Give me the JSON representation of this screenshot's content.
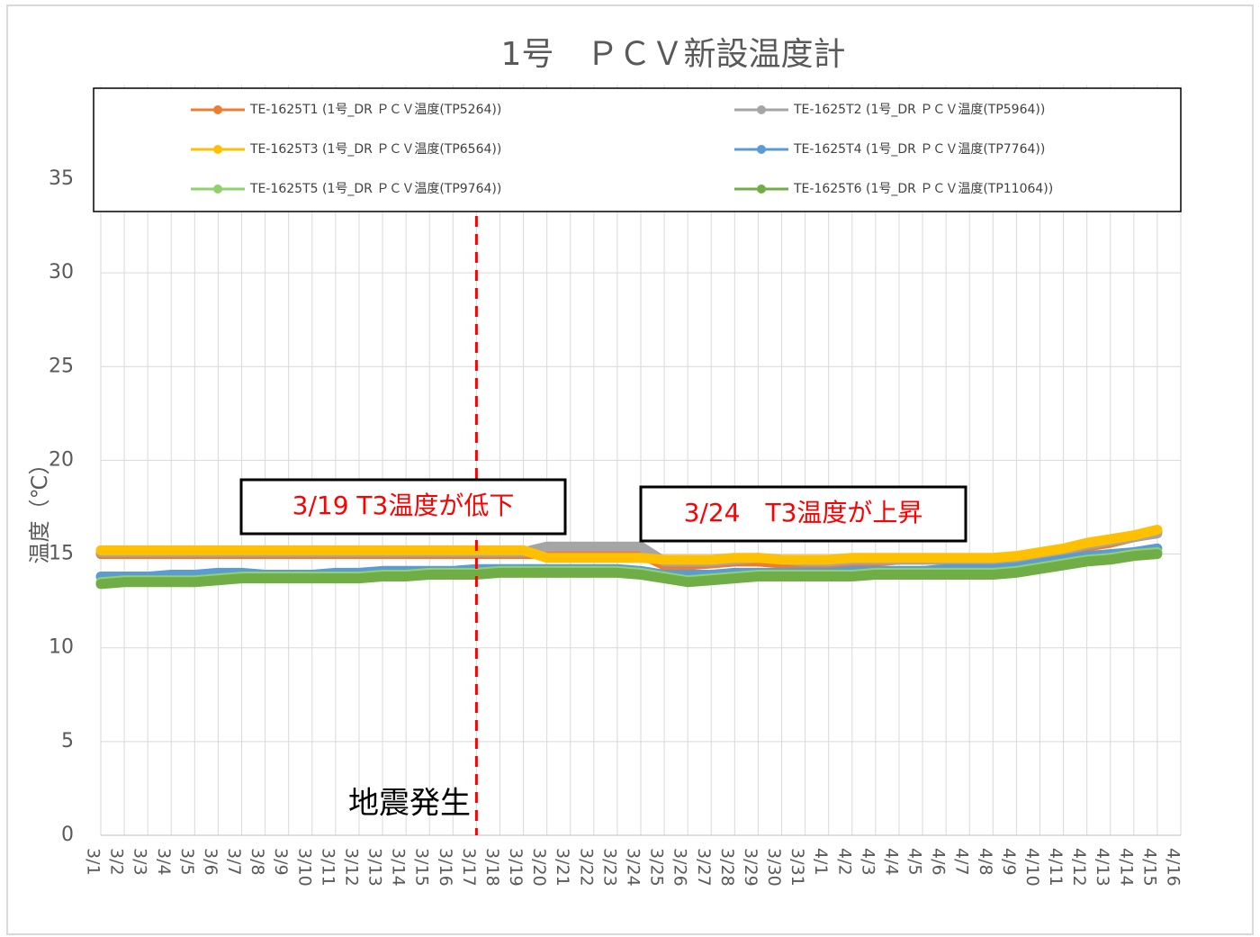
{
  "chart_data": {
    "type": "line",
    "title": "1号　ＰＣＶ新設温度計",
    "y_label": "温度（℃）",
    "categories": [
      "3/1",
      "3/2",
      "3/3",
      "3/4",
      "3/5",
      "3/6",
      "3/7",
      "3/8",
      "3/9",
      "3/10",
      "3/11",
      "3/12",
      "3/13",
      "3/14",
      "3/15",
      "3/16",
      "3/17",
      "3/18",
      "3/19",
      "3/20",
      "3/21",
      "3/22",
      "3/23",
      "3/24",
      "3/25",
      "3/26",
      "3/27",
      "3/28",
      "3/29",
      "3/30",
      "3/31",
      "4/1",
      "4/2",
      "4/3",
      "4/4",
      "4/5",
      "4/6",
      "4/7",
      "4/8",
      "4/9",
      "4/10",
      "4/11",
      "4/12",
      "4/13",
      "4/14",
      "4/15",
      "4/16"
    ],
    "series": [
      {
        "name": "TE-1625T1  (1号_DR ＰＣＶ温度(TP5264))",
        "color": "#ed7d31",
        "values": [
          15.0,
          15.0,
          15.0,
          15.0,
          15.0,
          15.0,
          15.0,
          15.0,
          15.0,
          15.0,
          15.0,
          15.0,
          15.0,
          15.0,
          15.0,
          15.0,
          15.0,
          15.0,
          15.0,
          15.0,
          15.0,
          15.0,
          15.0,
          15.0,
          14.4,
          14.4,
          14.5,
          14.6,
          14.6,
          14.5,
          14.5,
          14.5,
          14.6,
          14.6,
          14.7,
          14.7,
          14.7,
          14.7,
          14.7,
          14.8,
          15.0,
          15.2,
          15.4,
          15.6,
          15.9,
          16.2,
          null
        ]
      },
      {
        "name": "TE-1625T2  (1号_DR ＰＣＶ温度(TP5964))",
        "color": "#a5a5a5",
        "values": [
          15.1,
          15.1,
          15.1,
          15.1,
          15.1,
          15.1,
          15.1,
          15.1,
          15.1,
          15.1,
          15.1,
          15.1,
          15.1,
          15.1,
          15.1,
          15.1,
          15.1,
          15.1,
          15.1,
          15.4,
          15.4,
          15.4,
          15.4,
          15.4,
          14.6,
          14.6,
          14.6,
          14.7,
          14.8,
          14.7,
          14.6,
          14.6,
          14.7,
          14.7,
          14.7,
          14.7,
          14.7,
          14.7,
          14.7,
          14.8,
          15.0,
          15.2,
          15.5,
          15.7,
          15.9,
          16.1,
          null
        ]
      },
      {
        "name": "TE-1625T3  (1号_DR ＰＣＶ温度(TP6564))",
        "color": "#ffc000",
        "values": [
          15.2,
          15.2,
          15.2,
          15.2,
          15.2,
          15.2,
          15.2,
          15.2,
          15.2,
          15.2,
          15.2,
          15.2,
          15.2,
          15.2,
          15.2,
          15.2,
          15.2,
          15.2,
          15.2,
          14.8,
          14.8,
          14.8,
          14.8,
          14.8,
          14.7,
          14.7,
          14.7,
          14.8,
          14.8,
          14.7,
          14.7,
          14.7,
          14.8,
          14.8,
          14.8,
          14.8,
          14.8,
          14.8,
          14.8,
          14.9,
          15.1,
          15.3,
          15.6,
          15.8,
          16.0,
          16.3,
          null
        ]
      },
      {
        "name": "TE-1625T4  (1号_DR ＰＣＶ温度(TP7764))",
        "color": "#5b9bd5",
        "values": [
          13.8,
          13.8,
          13.8,
          13.9,
          13.9,
          14.0,
          14.0,
          13.9,
          13.9,
          13.9,
          14.0,
          14.0,
          14.1,
          14.1,
          14.1,
          14.1,
          14.2,
          14.2,
          14.2,
          14.2,
          14.2,
          14.2,
          14.2,
          14.1,
          13.9,
          13.9,
          13.9,
          14.0,
          14.0,
          14.0,
          14.0,
          14.0,
          14.1,
          14.1,
          14.1,
          14.1,
          14.2,
          14.2,
          14.2,
          14.3,
          14.5,
          14.7,
          14.9,
          15.0,
          15.1,
          15.3,
          null
        ]
      },
      {
        "name": "TE-1625T5  (1号_DR ＰＣＶ温度(TP9764))",
        "color": "#8fd16a",
        "values": [
          13.5,
          13.6,
          13.6,
          13.6,
          13.6,
          13.7,
          13.8,
          13.8,
          13.8,
          13.8,
          13.8,
          13.8,
          13.9,
          13.9,
          14.0,
          14.0,
          14.0,
          14.1,
          14.1,
          14.1,
          14.1,
          14.1,
          14.1,
          14.0,
          13.8,
          13.6,
          13.7,
          13.8,
          13.9,
          13.9,
          13.9,
          13.9,
          13.9,
          14.0,
          14.0,
          14.0,
          14.0,
          14.0,
          14.0,
          14.1,
          14.3,
          14.5,
          14.7,
          14.8,
          15.0,
          15.1,
          null
        ]
      },
      {
        "name": "TE-1625T6  (1号_DR ＰＣＶ温度(TP11064))",
        "color": "#70ad47",
        "values": [
          13.4,
          13.5,
          13.5,
          13.5,
          13.5,
          13.6,
          13.7,
          13.7,
          13.7,
          13.7,
          13.7,
          13.7,
          13.8,
          13.8,
          13.9,
          13.9,
          13.9,
          14.0,
          14.0,
          14.0,
          14.0,
          14.0,
          14.0,
          13.9,
          13.7,
          13.5,
          13.6,
          13.7,
          13.8,
          13.8,
          13.8,
          13.8,
          13.8,
          13.9,
          13.9,
          13.9,
          13.9,
          13.9,
          13.9,
          14.0,
          14.2,
          14.4,
          14.6,
          14.7,
          14.9,
          15.0,
          null
        ]
      }
    ],
    "ylim": [
      0,
      40
    ],
    "yticks": [
      0,
      5,
      10,
      15,
      20,
      25,
      30,
      35
    ],
    "grid": true,
    "legend": "top",
    "event_line": {
      "x": "3/17",
      "color": "#ff0000",
      "label": "地震発生"
    },
    "annotations": [
      "3/19 T3温度が低下",
      "3/24　T3温度が上昇"
    ]
  }
}
